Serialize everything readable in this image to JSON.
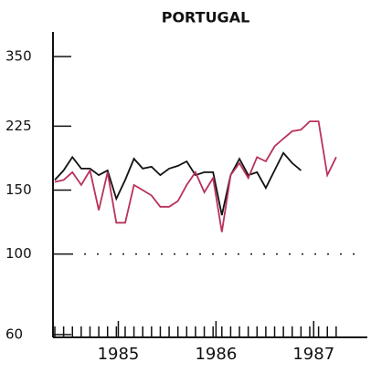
{
  "chart_data": {
    "type": "line",
    "title": "PORTUGAL",
    "x": [
      1984.85,
      1984.94,
      1985.03,
      1985.12,
      1985.21,
      1985.3,
      1985.39,
      1985.48,
      1985.57,
      1985.66,
      1985.75,
      1985.84,
      1985.93,
      1986.02,
      1986.11,
      1986.2,
      1986.29,
      1986.38,
      1986.47,
      1986.56,
      1986.65,
      1986.74,
      1986.83,
      1986.92,
      1987.01,
      1987.1,
      1987.19,
      1987.28,
      1987.37,
      1987.46,
      1987.55,
      1987.64,
      1987.73
    ],
    "series": [
      {
        "name": "black",
        "color": "#111111",
        "values": [
          160,
          170,
          185,
          172,
          172,
          165,
          170,
          142,
          160,
          183,
          172,
          174,
          165,
          172,
          175,
          180,
          165,
          168,
          168,
          128,
          165,
          183,
          165,
          168,
          152,
          170,
          190,
          178,
          170,
          null,
          null,
          null,
          null
        ]
      },
      {
        "name": "red",
        "color": "#b8325a",
        "values": [
          158,
          160,
          168,
          155,
          170,
          132,
          168,
          122,
          122,
          155,
          150,
          145,
          135,
          135,
          140,
          155,
          168,
          148,
          162,
          115,
          165,
          178,
          162,
          185,
          180,
          198,
          208,
          218,
          220,
          232,
          232,
          165,
          185
        ]
      }
    ],
    "xlim": [
      1984.85,
      1987.75
    ],
    "xticks": [
      {
        "value": 1985.5,
        "label": "1985"
      },
      {
        "value": 1986.5,
        "label": "1986"
      },
      {
        "value": 1987.5,
        "label": "1987"
      }
    ],
    "ylim": [
      60,
      350
    ],
    "yticks": [
      60,
      100,
      150,
      225,
      350
    ],
    "log_y": true,
    "reference_line": 100
  }
}
